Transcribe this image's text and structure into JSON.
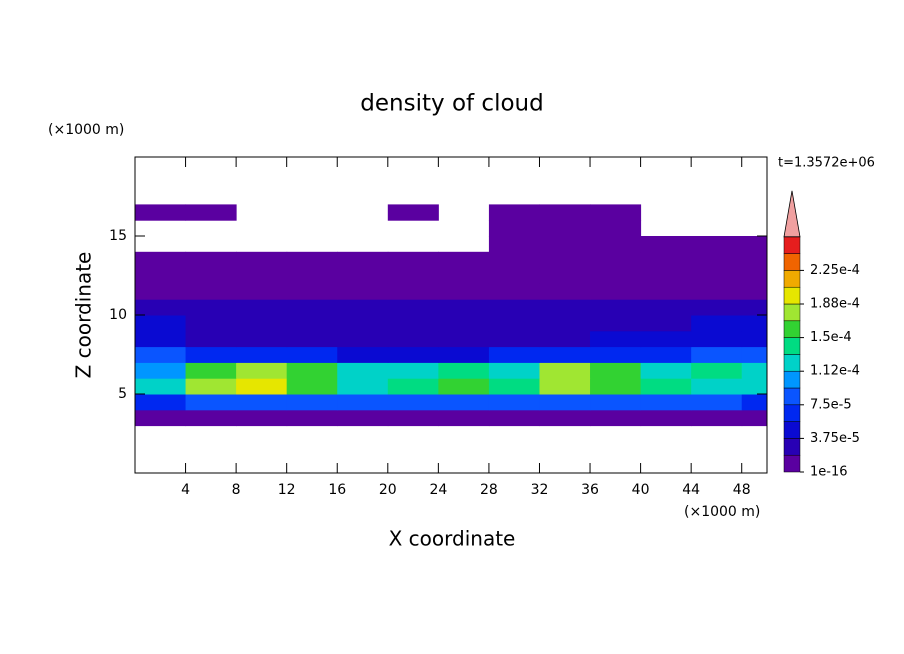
{
  "chart_data": {
    "type": "contour",
    "title": "density of cloud",
    "x_label": "X coordinate",
    "y_label": "Z coordinate",
    "x_unit": "(×1000 m)",
    "y_unit": "(×1000 m)",
    "time_label": "t=1.3572e+06",
    "xlim": [
      0,
      50
    ],
    "ylim": [
      0,
      20
    ],
    "xticks": [
      4,
      8,
      12,
      16,
      20,
      24,
      28,
      32,
      36,
      40,
      44,
      48
    ],
    "yticks": [
      5,
      10,
      15
    ],
    "x": [
      2,
      6,
      10,
      14,
      18,
      22,
      26,
      30,
      34,
      38,
      42,
      46,
      50
    ],
    "y": [
      3.5,
      4.5,
      5.5,
      6.5,
      7.5,
      8.5,
      9.5,
      10.5,
      11.5,
      12.5,
      13.5,
      14.5,
      15.5,
      16.5
    ],
    "values": [
      [
        1e-05,
        1e-05,
        1e-05,
        1e-05,
        1e-05,
        1e-05,
        1e-05,
        1e-05,
        1e-05,
        1e-05,
        1e-05,
        1e-05,
        1e-05
      ],
      [
        7e-05,
        8e-05,
        9e-05,
        8e-05,
        8e-05,
        8e-05,
        8e-05,
        8e-05,
        8e-05,
        8e-05,
        8e-05,
        8e-05,
        7e-05
      ],
      [
        0.00012,
        0.00017,
        0.00019,
        0.00016,
        0.00013,
        0.00014,
        0.00015,
        0.00014,
        0.00017,
        0.00015,
        0.00014,
        0.00013,
        0.00012
      ],
      [
        0.00011,
        0.00016,
        0.00018,
        0.00015,
        0.00012,
        0.00013,
        0.00014,
        0.00013,
        0.00018,
        0.00016,
        0.00013,
        0.00014,
        0.00012
      ],
      [
        8e-05,
        7e-05,
        6e-05,
        6e-05,
        5e-05,
        5e-05,
        5e-05,
        6e-05,
        7e-05,
        6e-05,
        6e-05,
        8e-05,
        8e-05
      ],
      [
        5e-05,
        3e-05,
        3e-05,
        3e-05,
        3e-05,
        3e-05,
        3e-05,
        3e-05,
        3e-05,
        4e-05,
        4e-05,
        5e-05,
        5e-05
      ],
      [
        4e-05,
        3e-05,
        3e-05,
        3e-05,
        2e-05,
        2e-05,
        3e-05,
        3e-05,
        3e-05,
        3e-05,
        3e-05,
        4e-05,
        4e-05
      ],
      [
        2e-05,
        2e-05,
        2e-05,
        2e-05,
        2e-05,
        2e-05,
        2e-05,
        2e-05,
        2e-05,
        2e-05,
        2e-05,
        2e-05,
        2e-05
      ],
      [
        1e-05,
        1e-05,
        1e-05,
        1e-05,
        1e-05,
        1e-05,
        1e-05,
        1e-05,
        1e-05,
        1e-05,
        1e-05,
        1e-05,
        1e-05
      ],
      [
        1e-16,
        1e-16,
        1e-16,
        1e-16,
        1e-16,
        1e-16,
        1e-16,
        1e-16,
        1e-16,
        1e-16,
        1e-16,
        1e-16,
        1e-16
      ],
      [
        1e-16,
        1e-16,
        1e-16,
        1e-16,
        1e-16,
        1e-16,
        1e-16,
        1e-16,
        1e-16,
        1e-16,
        1e-16,
        1e-16,
        1e-16
      ],
      [
        null,
        null,
        null,
        null,
        null,
        null,
        null,
        1e-16,
        1e-16,
        1e-16,
        1e-16,
        1e-16,
        1e-16
      ],
      [
        null,
        null,
        null,
        null,
        null,
        null,
        null,
        1e-16,
        1e-16,
        1e-16,
        null,
        null,
        null
      ],
      [
        1e-16,
        1e-16,
        null,
        null,
        null,
        1e-16,
        null,
        1e-16,
        1e-16,
        1e-16,
        null,
        null,
        null
      ]
    ],
    "levels": [
      1e-16,
      1.875e-05,
      3.75e-05,
      5.625e-05,
      7.5e-05,
      9.375e-05,
      0.0001125,
      0.00013125,
      0.00015,
      0.00016875,
      0.0001875,
      0.00020625,
      0.000225,
      0.00024375
    ],
    "colors": [
      "#5a00a0",
      "#2800b4",
      "#0a0ad2",
      "#0028f0",
      "#0a55ff",
      "#0096ff",
      "#00d2c8",
      "#00dc82",
      "#32d232",
      "#a0e632",
      "#e6e600",
      "#f0aa00",
      "#f06400",
      "#e61e1e"
    ],
    "extend_color": "#f0a0a0",
    "colorbar_ticks": [
      {
        "value": 1e-16,
        "label": "1e-16"
      },
      {
        "value": 3.75e-05,
        "label": "3.75e-5"
      },
      {
        "value": 7.5e-05,
        "label": "7.5e-5"
      },
      {
        "value": 0.0001125,
        "label": "1.12e-4"
      },
      {
        "value": 0.00015,
        "label": "1.5e-4"
      },
      {
        "value": 0.0001875,
        "label": "1.88e-4"
      },
      {
        "value": 0.000225,
        "label": "2.25e-4"
      }
    ]
  }
}
